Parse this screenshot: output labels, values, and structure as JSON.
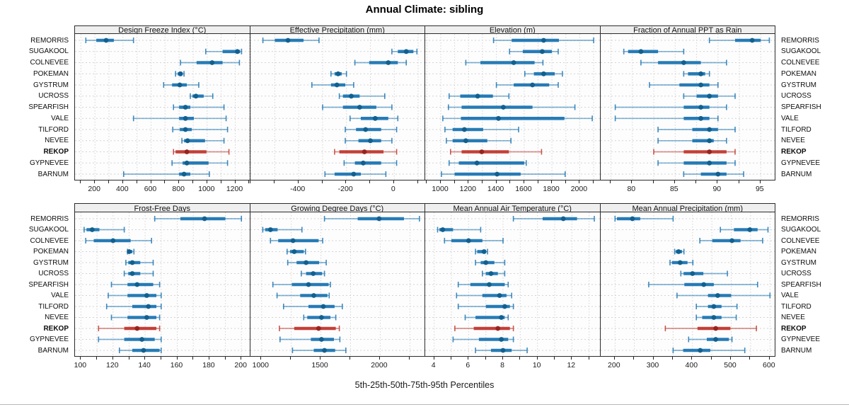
{
  "title": "Annual Climate: sibling",
  "footer_label": "5th-25th-50th-75th-95th Percentiles",
  "percentile_levels": [
    5,
    25,
    50,
    75,
    95
  ],
  "stations": [
    "REMORRIS",
    "SUGAKOOL",
    "COLNEVEE",
    "POKEMAN",
    "GYSTRUM",
    "UCROSS",
    "SPEARFISH",
    "VALE",
    "TILFORD",
    "NEVEE",
    "REKOP",
    "GYPNEVEE",
    "BARNUM"
  ],
  "highlight_station": "REKOP",
  "colors": {
    "bar": "#1f77b4",
    "dot": "#11608f",
    "highlight_bar": "#c23a31",
    "highlight_dot": "#96251f",
    "gridline": "#d4d4d4",
    "strip_bg": "#efefef",
    "panel_border": "#2b2b2b",
    "text": "#1a1a1a"
  },
  "chart_data": [
    {
      "type": "percentile-dotplot",
      "title": "Design Freeze Index (°C)",
      "xlim": [
        58,
        1306
      ],
      "label_ticks": [
        200,
        400,
        600,
        800,
        1000,
        1200
      ],
      "grid_step": 100,
      "values": [
        [
          135,
          210,
          280,
          335,
          475
        ],
        [
          990,
          1110,
          1215,
          1235,
          1245
        ],
        [
          810,
          925,
          1035,
          1110,
          1230
        ],
        [
          775,
          790,
          810,
          825,
          835
        ],
        [
          690,
          750,
          805,
          855,
          940
        ],
        [
          880,
          895,
          920,
          975,
          1040
        ],
        [
          760,
          800,
          845,
          880,
          1120
        ],
        [
          475,
          800,
          845,
          905,
          1135
        ],
        [
          755,
          805,
          845,
          890,
          1145
        ],
        [
          820,
          835,
          860,
          985,
          1120
        ],
        [
          760,
          775,
          855,
          995,
          1155
        ],
        [
          750,
          825,
          855,
          1010,
          1145
        ],
        [
          405,
          800,
          835,
          880,
          1015
        ]
      ]
    },
    {
      "type": "percentile-dotplot",
      "title": "Effective Precipitation (mm)",
      "xlim": [
        -602,
        131
      ],
      "label_ticks": [
        -400,
        -200,
        0
      ],
      "grid_step": 100,
      "values": [
        [
          -550,
          -500,
          -445,
          -380,
          -315
        ],
        [
          -10,
          15,
          50,
          80,
          95
        ],
        [
          -165,
          -105,
          -25,
          15,
          50
        ],
        [
          -265,
          -250,
          -235,
          -220,
          -200
        ],
        [
          -345,
          -265,
          -240,
          -205,
          -170
        ],
        [
          -230,
          -215,
          -180,
          -145,
          -40
        ],
        [
          -300,
          -215,
          -145,
          -75,
          -10
        ],
        [
          -185,
          -140,
          -80,
          -25,
          15
        ],
        [
          -205,
          -160,
          -120,
          -55,
          10
        ],
        [
          -205,
          -150,
          -100,
          -55,
          -10
        ],
        [
          -250,
          -230,
          -125,
          -45,
          10
        ],
        [
          -210,
          -165,
          -130,
          -55,
          10
        ],
        [
          -290,
          -250,
          -170,
          -140,
          -35
        ]
      ]
    },
    {
      "type": "percentile-dotplot",
      "title": "Elevation (m)",
      "xlim": [
        888,
        2148
      ],
      "label_ticks": [
        1000,
        1200,
        1400,
        1600,
        1800,
        2000
      ],
      "grid_step": 100,
      "values": [
        [
          1380,
          1510,
          1740,
          1850,
          2100
        ],
        [
          1495,
          1590,
          1730,
          1800,
          1845
        ],
        [
          1180,
          1285,
          1525,
          1675,
          1735
        ],
        [
          1605,
          1670,
          1740,
          1820,
          1875
        ],
        [
          1400,
          1525,
          1660,
          1780,
          1845
        ],
        [
          1060,
          1140,
          1265,
          1375,
          1490
        ],
        [
          1055,
          1150,
          1450,
          1660,
          1965
        ],
        [
          1015,
          1145,
          1415,
          1890,
          2090
        ],
        [
          1030,
          1085,
          1170,
          1305,
          1560
        ],
        [
          1040,
          1085,
          1180,
          1335,
          1505
        ],
        [
          1070,
          1150,
          1295,
          1490,
          1725
        ],
        [
          1060,
          1130,
          1260,
          1600,
          1615
        ],
        [
          1005,
          1100,
          1405,
          1575,
          1895
        ]
      ]
    },
    {
      "type": "percentile-dotplot",
      "title": "Fraction of Annual PPT as Rain",
      "xlim": [
        76.3,
        96.75
      ],
      "label_ticks": [
        80,
        85,
        90,
        95
      ],
      "grid_step": 2.5,
      "values": [
        [
          89,
          92,
          94,
          95,
          96
        ],
        [
          79,
          79.5,
          81,
          83,
          86
        ],
        [
          81,
          83,
          86,
          88,
          91
        ],
        [
          86,
          86.5,
          88,
          88.5,
          89
        ],
        [
          82,
          85.5,
          88,
          89,
          90
        ],
        [
          86,
          87.5,
          89,
          90,
          92
        ],
        [
          78,
          86,
          88,
          89,
          91
        ],
        [
          78,
          86,
          88,
          89,
          90
        ],
        [
          83,
          87,
          89,
          90,
          92
        ],
        [
          83,
          87,
          89,
          89.5,
          91
        ],
        [
          82.5,
          86,
          89,
          91,
          92
        ],
        [
          83,
          86,
          89,
          91,
          92
        ],
        [
          86,
          88,
          90,
          91,
          93
        ]
      ]
    },
    {
      "type": "percentile-dotplot",
      "title": "Frost-Free Days",
      "xlim": [
        96.3,
        205.4
      ],
      "label_ticks": [
        100,
        120,
        140,
        160,
        180,
        200
      ],
      "grid_step": 10,
      "values": [
        [
          146,
          162,
          177,
          190,
          200
        ],
        [
          102,
          103.5,
          107,
          111.5,
          127
        ],
        [
          103,
          108,
          120,
          131,
          144
        ],
        [
          129,
          129.5,
          130,
          132,
          133
        ],
        [
          128,
          129.5,
          132,
          137,
          145
        ],
        [
          127,
          129.5,
          132,
          137,
          145
        ],
        [
          119,
          129,
          135,
          145,
          149
        ],
        [
          117,
          129,
          141,
          147,
          150
        ],
        [
          116,
          132,
          142,
          147,
          150
        ],
        [
          119,
          129,
          141,
          147,
          149
        ],
        [
          111,
          127,
          135,
          147,
          149
        ],
        [
          111,
          127,
          138,
          146,
          150
        ],
        [
          124,
          132,
          139,
          149,
          150
        ]
      ]
    },
    {
      "type": "percentile-dotplot",
      "title": "Growing Degree Days (°C)",
      "xlim": [
        906,
        2382
      ],
      "label_ticks": [
        1000,
        1500,
        2000
      ],
      "grid_step": 250,
      "values": [
        [
          1530,
          1810,
          1990,
          2200,
          2330
        ],
        [
          1010,
          1030,
          1075,
          1135,
          1340
        ],
        [
          1075,
          1140,
          1265,
          1480,
          1515
        ],
        [
          1215,
          1240,
          1275,
          1355,
          1370
        ],
        [
          1220,
          1295,
          1375,
          1485,
          1545
        ],
        [
          1335,
          1375,
          1435,
          1510,
          1530
        ],
        [
          1095,
          1255,
          1395,
          1565,
          1580
        ],
        [
          1130,
          1325,
          1440,
          1555,
          1570
        ],
        [
          1185,
          1395,
          1520,
          1615,
          1680
        ],
        [
          1355,
          1385,
          1505,
          1580,
          1625
        ],
        [
          1150,
          1275,
          1480,
          1625,
          1655
        ],
        [
          1155,
          1415,
          1505,
          1610,
          1660
        ],
        [
          1260,
          1440,
          1530,
          1620,
          1710
        ]
      ]
    },
    {
      "type": "percentile-dotplot",
      "title": "Mean Annual Air Temperature (°C)",
      "xlim": [
        3.48,
        13.65
      ],
      "label_ticks": [
        4,
        6,
        8,
        10,
        12
      ],
      "grid_step": 1,
      "values": [
        [
          8.6,
          10.3,
          11.5,
          12.3,
          13.3
        ],
        [
          4.2,
          4.3,
          4.5,
          5.1,
          6.7
        ],
        [
          4.6,
          5.0,
          6.0,
          6.8,
          8.0
        ],
        [
          6.4,
          6.5,
          6.9,
          7.0,
          7.1
        ],
        [
          6.4,
          6.7,
          7.0,
          7.5,
          8.1
        ],
        [
          6.8,
          7.0,
          7.3,
          7.7,
          8.1
        ],
        [
          5.4,
          6.1,
          7.2,
          8.1,
          8.3
        ],
        [
          5.3,
          6.8,
          7.8,
          8.2,
          8.5
        ],
        [
          5.4,
          7.0,
          8.1,
          8.4,
          8.6
        ],
        [
          5.8,
          6.4,
          7.9,
          8.1,
          8.3
        ],
        [
          5.2,
          6.3,
          7.7,
          8.4,
          8.6
        ],
        [
          5.1,
          6.6,
          7.9,
          8.3,
          8.6
        ],
        [
          6.4,
          7.3,
          8.0,
          8.5,
          9.4
        ]
      ]
    },
    {
      "type": "percentile-dotplot",
      "title": "Mean Annual Precipitation (mm)",
      "xlim": [
        163,
        615
      ],
      "label_ticks": [
        200,
        300,
        400,
        500,
        600
      ],
      "grid_step": 50,
      "values": [
        [
          200,
          205,
          245,
          265,
          350
        ],
        [
          472,
          507,
          548,
          568,
          595
        ],
        [
          419,
          451,
          502,
          524,
          581
        ],
        [
          354,
          357,
          364,
          373,
          378
        ],
        [
          342,
          347,
          368,
          387,
          401
        ],
        [
          370,
          377,
          400,
          428,
          490
        ],
        [
          287,
          379,
          429,
          455,
          568
        ],
        [
          360,
          440,
          465,
          500,
          600
        ],
        [
          410,
          440,
          455,
          475,
          515
        ],
        [
          410,
          425,
          455,
          475,
          513
        ],
        [
          330,
          413,
          460,
          498,
          565
        ],
        [
          390,
          437,
          460,
          494,
          502
        ],
        [
          350,
          376,
          420,
          446,
          535
        ]
      ]
    }
  ]
}
